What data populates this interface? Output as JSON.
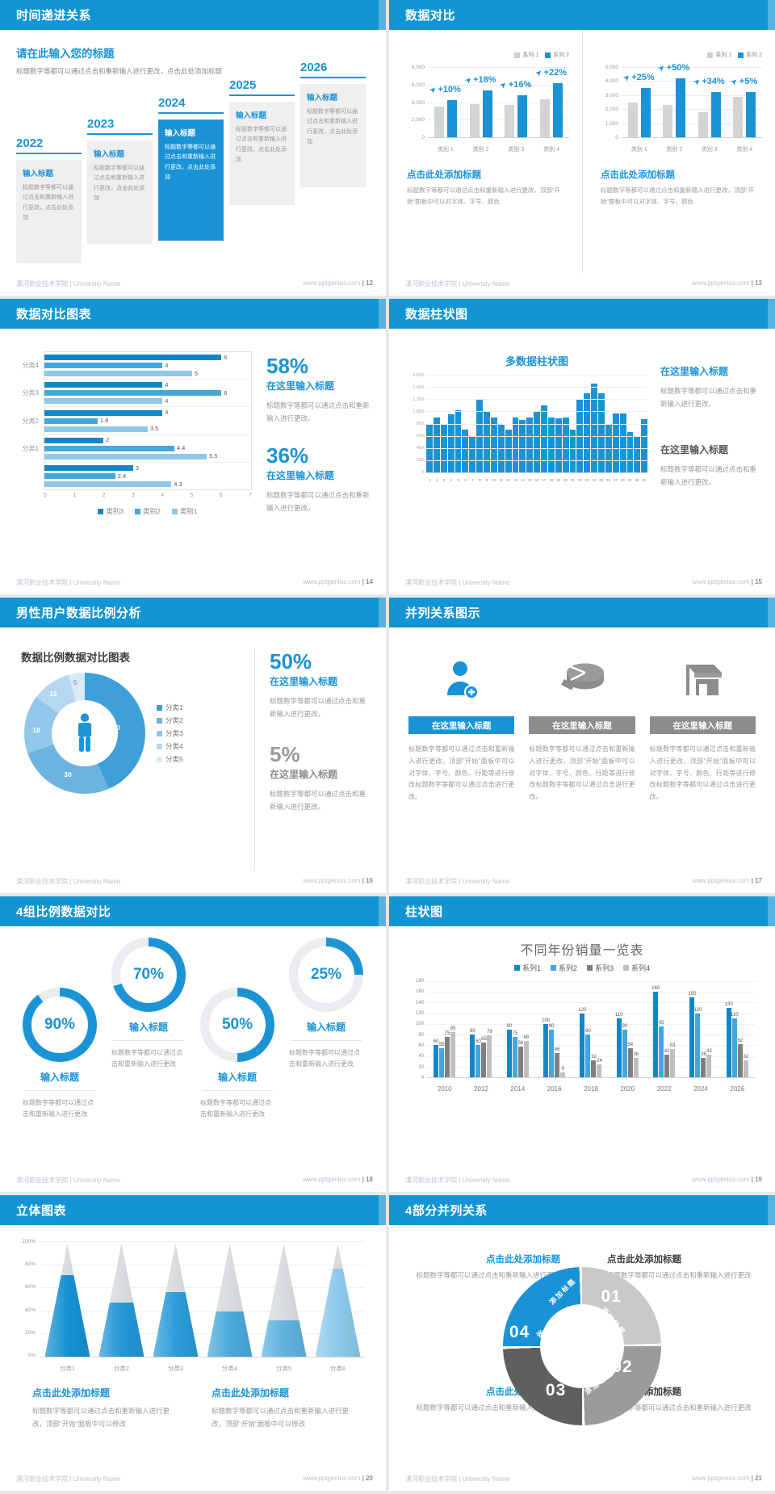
{
  "footer": {
    "left": "漯河职业技术学院 | University Name",
    "site": "www.pptgenius.com",
    "page_prefix": "| "
  },
  "colors": {
    "accent": "#1495d3",
    "bar_blue": "#1a93d6",
    "bar_gray": "#d4d4d4"
  },
  "slides": [
    {
      "title": "时间递进关系",
      "page": "12",
      "intro_title": "请在此输入您的标题",
      "intro_body": "标题数字等都可以通过点击和重新输入进行更改，点击此处添加标题",
      "items": [
        {
          "year": "2022",
          "title": "输入标题",
          "body": "标题数字等都可以通过点击和重新输入进行更改，点击此处添加",
          "highlight": false
        },
        {
          "year": "2023",
          "title": "输入标题",
          "body": "标题数字等都可以通过点击和重新输入进行更改，点击此处添加",
          "highlight": false
        },
        {
          "year": "2024",
          "title": "输入标题",
          "body": "标题数字等都可以通过点击和重新输入进行更改，点击此处添加",
          "highlight": true
        },
        {
          "year": "2025",
          "title": "输入标题",
          "body": "标题数字等都可以通过点击和重新输入进行更改，点击此处添加",
          "highlight": false
        },
        {
          "year": "2026",
          "title": "输入标题",
          "body": "标题数字等都可以通过点击和重新输入进行更改，点击此处添加",
          "highlight": false
        }
      ]
    },
    {
      "title": "数据对比",
      "page": "13",
      "charts": [
        {
          "legend": [
            "系列 1",
            "系列 2"
          ],
          "yticks": [
            "8,000",
            "6,000",
            "4,000",
            "2,000",
            "0"
          ],
          "ymax": 8000,
          "categories": [
            "类别 1",
            "类别 2",
            "类别 3",
            "类别 4"
          ],
          "series1": [
            3500,
            3800,
            3700,
            4300
          ],
          "series2": [
            4200,
            5300,
            4800,
            6200
          ],
          "labels": [
            "+10%",
            "+18%",
            "+16%",
            "+22%"
          ],
          "heading": "点击此处添加标题",
          "body": "标题数字等都可以通过点击和重新输入进行更改，顶部“开始”面板中可以对字体、字号、颜色"
        },
        {
          "legend": [
            "系列 1",
            "系列 2"
          ],
          "yticks": [
            "5,000",
            "4,000",
            "3,000",
            "2,000",
            "1,000",
            "0"
          ],
          "ymax": 5000,
          "categories": [
            "类别 1",
            "类别 2",
            "类别 3",
            "类别 4"
          ],
          "series1": [
            2500,
            2300,
            1800,
            2900
          ],
          "series2": [
            3500,
            4200,
            3200,
            3200
          ],
          "labels": [
            "+25%",
            "+50%",
            "+34%",
            "+5%"
          ],
          "heading": "点击此处添加标题",
          "body": "标题数字等都可以通过点击和重新输入进行更改，顶部“开始”面板中可以对字体、字号、颜色"
        }
      ]
    },
    {
      "title": "数据对比图表",
      "page": "14",
      "chart_data": {
        "type": "bar",
        "orientation": "horizontal",
        "xmax": 7,
        "xticks": [
          "0",
          "1",
          "2",
          "3",
          "4",
          "5",
          "6",
          "7"
        ],
        "legend": [
          "类别3",
          "类别2",
          "类别1"
        ],
        "colors": [
          "#1287c8",
          "#41a7dc",
          "#8ec7e8"
        ],
        "groups": [
          {
            "label": "分类4",
            "values": [
              6,
              4,
              5
            ]
          },
          {
            "label": "分类3",
            "values": [
              4,
              6,
              4
            ]
          },
          {
            "label": "分类2",
            "values": [
              4,
              1.8,
              3.5
            ]
          },
          {
            "label": "分类1",
            "values": [
              2,
              4.4,
              5.5
            ]
          },
          {
            "label": "",
            "values": [
              3,
              2.4,
              4.3
            ]
          }
        ]
      },
      "stats": [
        {
          "value": "58%",
          "title": "在这里输入标题",
          "body": "标题数字等都可以通过点击和重新输入进行更改。"
        },
        {
          "value": "36%",
          "title": "在这里输入标题",
          "body": "标题数字等都可以通过点击和重新输入进行更改。"
        }
      ]
    },
    {
      "title": "数据柱状图",
      "page": "15",
      "chart_data": {
        "type": "bar",
        "title": "多数据柱状图",
        "ymax": 1600,
        "yticks": [
          "1,600",
          "1,400",
          "1,200",
          "1,000",
          "800",
          "600",
          "400",
          "200",
          "0"
        ],
        "xlabels": [
          "1",
          "2",
          "3",
          "4",
          "5",
          "6",
          "7",
          "8",
          "9",
          "10",
          "11",
          "12",
          "13",
          "14",
          "15",
          "16",
          "17",
          "18",
          "19",
          "20",
          "21",
          "22",
          "23",
          "24",
          "25",
          "26",
          "27",
          "28",
          "29",
          "30",
          "31"
        ],
        "values": [
          800,
          900,
          800,
          950,
          1020,
          700,
          600,
          1200,
          990,
          900,
          790,
          700,
          900,
          860,
          900,
          1000,
          1100,
          900,
          880,
          900,
          700,
          1200,
          1300,
          1450,
          1300,
          800,
          960,
          970,
          660,
          590,
          870
        ]
      },
      "stats": [
        {
          "title": "在这里输入标题",
          "body": "标题数字等都可以通过点击和重新输入进行更改。",
          "accent": true
        },
        {
          "title": "在这里输入标题",
          "body": "标题数字等都可以通过点击和重新输入进行更改。",
          "accent": false
        }
      ]
    },
    {
      "title": "男性用户数据比例分析",
      "page": "16",
      "chart_data": {
        "type": "pie",
        "title": "数据比例数据对比图表",
        "slices": [
          {
            "label": "分类1",
            "value": 50,
            "color": "#3f9fd8"
          },
          {
            "label": "分类2",
            "value": 30,
            "color": "#6cb3e0"
          },
          {
            "label": "分类3",
            "value": 18,
            "color": "#92c6ea"
          },
          {
            "label": "分类4",
            "value": 12,
            "color": "#b5d8f0"
          },
          {
            "label": "分类5",
            "value": 5,
            "color": "#d8ebf8"
          }
        ]
      },
      "stats": [
        {
          "value": "50%",
          "title": "在这里输入标题",
          "body": "标题数字等都可以通过点击和重新输入进行更改。",
          "accent": true
        },
        {
          "value": "5%",
          "title": "在这里输入标题",
          "body": "标题数字等都可以通过点击和重新输入进行更改。",
          "accent": false
        }
      ]
    },
    {
      "title": "并列关系图示",
      "page": "17",
      "items": [
        {
          "icon": "woman-plus-icon",
          "heading": "在这里输入标题",
          "body": "标题数字等都可以通过点击和重新输入进行更改，顶部“开始”面板中可以对字体、字号、颜色、行距等进行修改标题数字等都可以通过点击进行更改。",
          "accent": true
        },
        {
          "icon": "pie-3d-icon",
          "heading": "在这里输入标题",
          "body": "标题数字等都可以通过点击和重新输入进行更改，顶部“开始”面板中可以对字体、字号、颜色、行距等进行修改标题数字等都可以通过点击进行更改。",
          "accent": false
        },
        {
          "icon": "shop-icon",
          "heading": "在这里输入标题",
          "body": "标题数字等都可以通过点击和重新输入进行更改，顶部“开始”面板中可以对字体、字号、颜色、行距等进行修改标题数字等都可以通过点击进行更改。",
          "accent": false
        }
      ]
    },
    {
      "title": "4组比例数据对比",
      "page": "18",
      "items": [
        {
          "percent": 90,
          "label": "90%",
          "heading": "输入标题",
          "body": "标题数字等都可以通过点击和重新输入进行更改",
          "raised": false
        },
        {
          "percent": 70,
          "label": "70%",
          "heading": "输入标题",
          "body": "标题数字等都可以通过点击和重新输入进行更改",
          "raised": true
        },
        {
          "percent": 50,
          "label": "50%",
          "heading": "输入标题",
          "body": "标题数字等都可以通过点击和重新输入进行更改",
          "raised": false
        },
        {
          "percent": 25,
          "label": "25%",
          "heading": "输入标题",
          "body": "标题数字等都可以通过点击和重新输入进行更改",
          "raised": true
        }
      ]
    },
    {
      "title": "柱状图",
      "page": "19",
      "chart_data": {
        "type": "bar",
        "title": "不同年份销量一览表",
        "ylim": [
          0,
          180
        ],
        "yticks": [
          "180",
          "160",
          "140",
          "120",
          "100",
          "80",
          "60",
          "40",
          "20",
          "0"
        ],
        "categories": [
          "2010",
          "2012",
          "2014",
          "2016",
          "2018",
          "2020",
          "2022",
          "2024",
          "2026"
        ],
        "series": [
          {
            "name": "系列1",
            "color": "#1287c8",
            "values": [
              60,
              80,
              90,
              100,
              120,
              110,
              160,
              150,
              130
            ]
          },
          {
            "name": "系列2",
            "color": "#41a7dc",
            "values": [
              55,
              60,
              75,
              90,
              80,
              90,
              95,
              120,
              110
            ]
          },
          {
            "name": "系列3",
            "color": "#7f7f7f",
            "values": [
              75,
              65,
              58,
              46,
              32,
              54,
              42,
              36,
              62
            ]
          },
          {
            "name": "系列4",
            "color": "#bfbfbf",
            "values": [
              85,
              78,
              68,
              9,
              24,
              36,
              53,
              42,
              32
            ]
          }
        ]
      }
    },
    {
      "title": "立体图表",
      "page": "20",
      "chart_data": {
        "type": "cone",
        "yticks": [
          "100%",
          "80%",
          "60%",
          "40%",
          "20%",
          "0%"
        ],
        "categories": [
          "分类1",
          "分类2",
          "分类3",
          "分类4",
          "分类5",
          "分类6"
        ],
        "values": [
          72,
          48,
          57,
          40,
          32,
          78
        ],
        "colors": [
          "#1691d3",
          "#2397d6",
          "#2a9cd8",
          "#4aa9db",
          "#5fb2de",
          "#8cc9ea"
        ]
      },
      "blocks": [
        {
          "heading": "点击此处添加标题",
          "body": "标题数字等都可以通过点击和重新输入进行更改，顶部“开始”面板中可以修改"
        },
        {
          "heading": "点击此处添加标题",
          "body": "标题数字等都可以通过点击和重新输入进行更改，顶部“开始”面板中可以修改"
        }
      ]
    },
    {
      "title": "4部分并列关系",
      "page": "21",
      "segments": [
        {
          "num": "01",
          "label": "添加标题",
          "color": "#c9c9c9"
        },
        {
          "num": "02",
          "label": "添加标题",
          "color": "#9b9b9b"
        },
        {
          "num": "03",
          "label": "添加标题",
          "color": "#5f5f5f"
        },
        {
          "num": "04",
          "label": "添加标题",
          "color": "#1a93d6"
        }
      ],
      "blocks": [
        {
          "heading": "点击此处添加标题",
          "body": "标题数字等都可以通过点击和重新输入进行更改",
          "accent": true
        },
        {
          "heading": "点击此处添加标题",
          "body": "标题数字等都可以通过点击和重新输入进行更改",
          "accent": false
        },
        {
          "heading": "点击此处添加标题",
          "body": "标题数字等都可以通过点击和重新输入进行更改",
          "accent": true
        },
        {
          "heading": "点击此处添加标题",
          "body": "标题数字等都可以通过点击和重新输入进行更改",
          "accent": false
        }
      ]
    }
  ]
}
